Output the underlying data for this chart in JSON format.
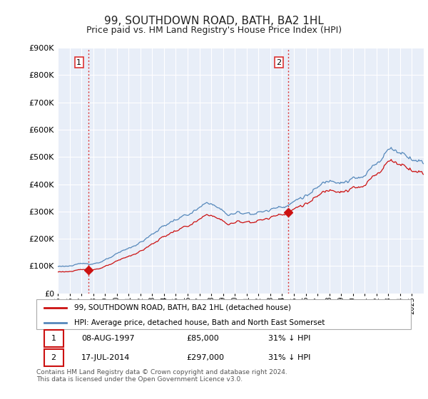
{
  "title": "99, SOUTHDOWN ROAD, BATH, BA2 1HL",
  "subtitle": "Price paid vs. HM Land Registry's House Price Index (HPI)",
  "title_fontsize": 11,
  "subtitle_fontsize": 9,
  "background_color": "#ffffff",
  "plot_bg_color": "#e8eef8",
  "grid_color": "#ffffff",
  "ylim": [
    0,
    900000
  ],
  "yticks": [
    0,
    100000,
    200000,
    300000,
    400000,
    500000,
    600000,
    700000,
    800000,
    900000
  ],
  "sale1_date_num": 1997.6,
  "sale1_price": 85000,
  "sale1_label": "1",
  "sale2_date_num": 2014.54,
  "sale2_price": 297000,
  "sale2_label": "2",
  "vline_color": "#dd3333",
  "hpi_line_color": "#5588bb",
  "property_line_color": "#cc1111",
  "legend_label_property": "99, SOUTHDOWN ROAD, BATH, BA2 1HL (detached house)",
  "legend_label_hpi": "HPI: Average price, detached house, Bath and North East Somerset",
  "footer_text": "Contains HM Land Registry data © Crown copyright and database right 2024.\nThis data is licensed under the Open Government Licence v3.0.",
  "table_rows": [
    [
      "1",
      "08-AUG-1997",
      "£85,000",
      "31% ↓ HPI"
    ],
    [
      "2",
      "17-JUL-2014",
      "£297,000",
      "31% ↓ HPI"
    ]
  ]
}
